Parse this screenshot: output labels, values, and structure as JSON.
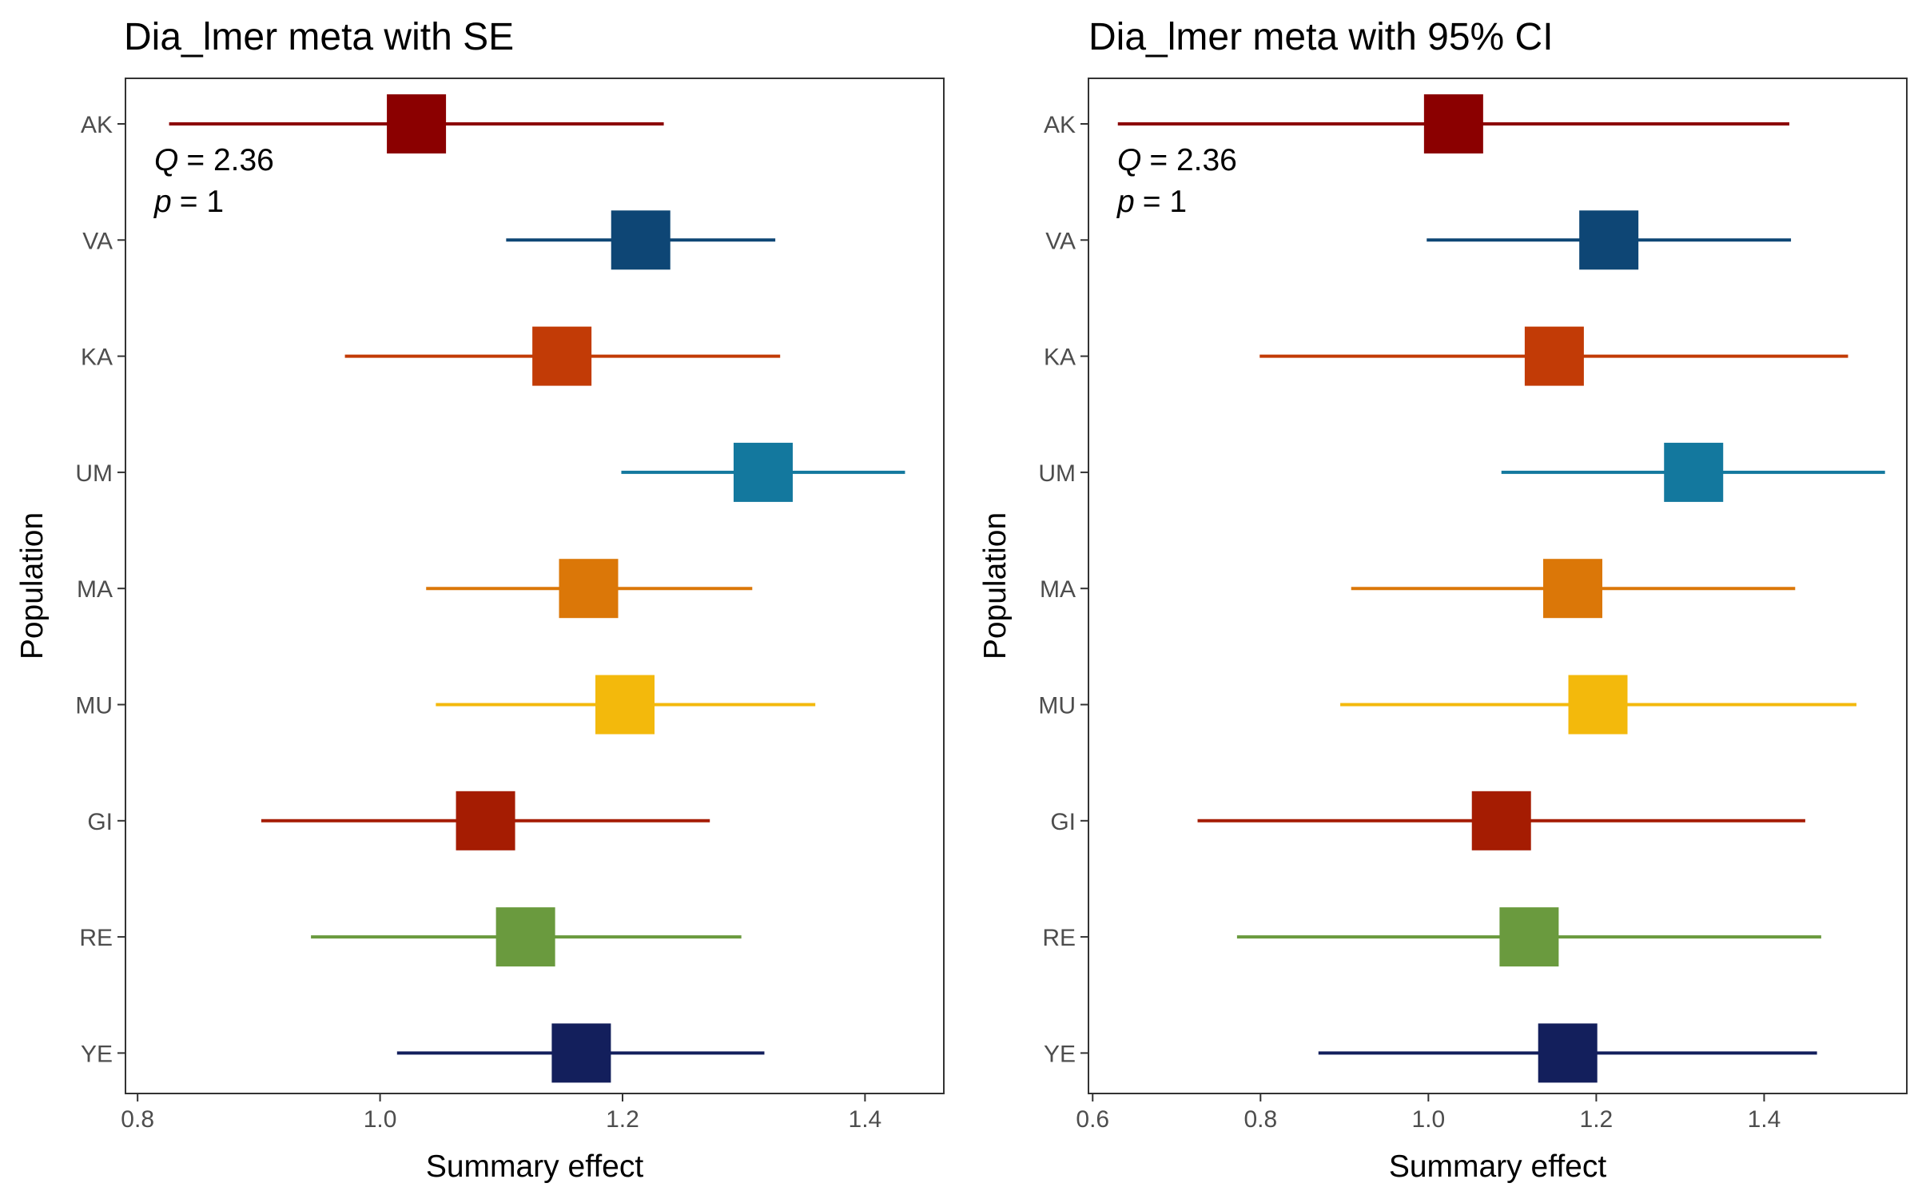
{
  "chart_data": [
    {
      "type": "forest",
      "title": "Dia_lmer meta with SE",
      "xlabel": "Summary effect",
      "ylabel": "Population",
      "xlim": [
        0.79,
        1.465
      ],
      "xticks": [
        "0.8",
        "1.0",
        "1.2",
        "1.4"
      ],
      "xtick_values": [
        0.8,
        1.0,
        1.2,
        1.4
      ],
      "annotation": {
        "q_symbol": "Q",
        "q_value": "= 2.36",
        "p_symbol": "p",
        "p_value": "= 1"
      },
      "categories": [
        "AK",
        "VA",
        "KA",
        "UM",
        "MA",
        "MU",
        "GI",
        "RE",
        "YE"
      ],
      "points": [
        {
          "label": "AK",
          "estimate": 1.03,
          "lower": 0.826,
          "upper": 1.234,
          "color": "#8B0000"
        },
        {
          "label": "VA",
          "estimate": 1.215,
          "lower": 1.104,
          "upper": 1.326,
          "color": "#0E4675"
        },
        {
          "label": "KA",
          "estimate": 1.15,
          "lower": 0.971,
          "upper": 1.33,
          "color": "#C23B06"
        },
        {
          "label": "UM",
          "estimate": 1.316,
          "lower": 1.199,
          "upper": 1.433,
          "color": "#13789E"
        },
        {
          "label": "MA",
          "estimate": 1.172,
          "lower": 1.038,
          "upper": 1.307,
          "color": "#DB7708"
        },
        {
          "label": "MU",
          "estimate": 1.202,
          "lower": 1.046,
          "upper": 1.359,
          "color": "#F3B90C"
        },
        {
          "label": "GI",
          "estimate": 1.087,
          "lower": 0.902,
          "upper": 1.272,
          "color": "#A51C02"
        },
        {
          "label": "RE",
          "estimate": 1.12,
          "lower": 0.943,
          "upper": 1.298,
          "color": "#6A9A3E"
        },
        {
          "label": "YE",
          "estimate": 1.166,
          "lower": 1.014,
          "upper": 1.317,
          "color": "#131F5C"
        }
      ]
    },
    {
      "type": "forest",
      "title": "Dia_lmer meta with 95% CI",
      "xlabel": "Summary effect",
      "ylabel": "Population",
      "xlim": [
        0.595,
        1.57
      ],
      "xticks": [
        "0.6",
        "0.8",
        "1.0",
        "1.2",
        "1.4"
      ],
      "xtick_values": [
        0.6,
        0.8,
        1.0,
        1.2,
        1.4
      ],
      "annotation": {
        "q_symbol": "Q",
        "q_value": "= 2.36",
        "p_symbol": "p",
        "p_value": "= 1"
      },
      "categories": [
        "AK",
        "VA",
        "KA",
        "UM",
        "MA",
        "MU",
        "GI",
        "RE",
        "YE"
      ],
      "points": [
        {
          "label": "AK",
          "estimate": 1.03,
          "lower": 0.63,
          "upper": 1.43,
          "color": "#8B0000"
        },
        {
          "label": "VA",
          "estimate": 1.215,
          "lower": 0.998,
          "upper": 1.432,
          "color": "#0E4675"
        },
        {
          "label": "KA",
          "estimate": 1.15,
          "lower": 0.799,
          "upper": 1.5,
          "color": "#C23B06"
        },
        {
          "label": "UM",
          "estimate": 1.316,
          "lower": 1.087,
          "upper": 1.544,
          "color": "#13789E"
        },
        {
          "label": "MA",
          "estimate": 1.172,
          "lower": 0.908,
          "upper": 1.437,
          "color": "#DB7708"
        },
        {
          "label": "MU",
          "estimate": 1.202,
          "lower": 0.895,
          "upper": 1.51,
          "color": "#F3B90C"
        },
        {
          "label": "GI",
          "estimate": 1.087,
          "lower": 0.725,
          "upper": 1.449,
          "color": "#A51C02"
        },
        {
          "label": "RE",
          "estimate": 1.12,
          "lower": 0.772,
          "upper": 1.468,
          "color": "#6A9A3E"
        },
        {
          "label": "YE",
          "estimate": 1.166,
          "lower": 0.869,
          "upper": 1.463,
          "color": "#131F5C"
        }
      ]
    }
  ]
}
